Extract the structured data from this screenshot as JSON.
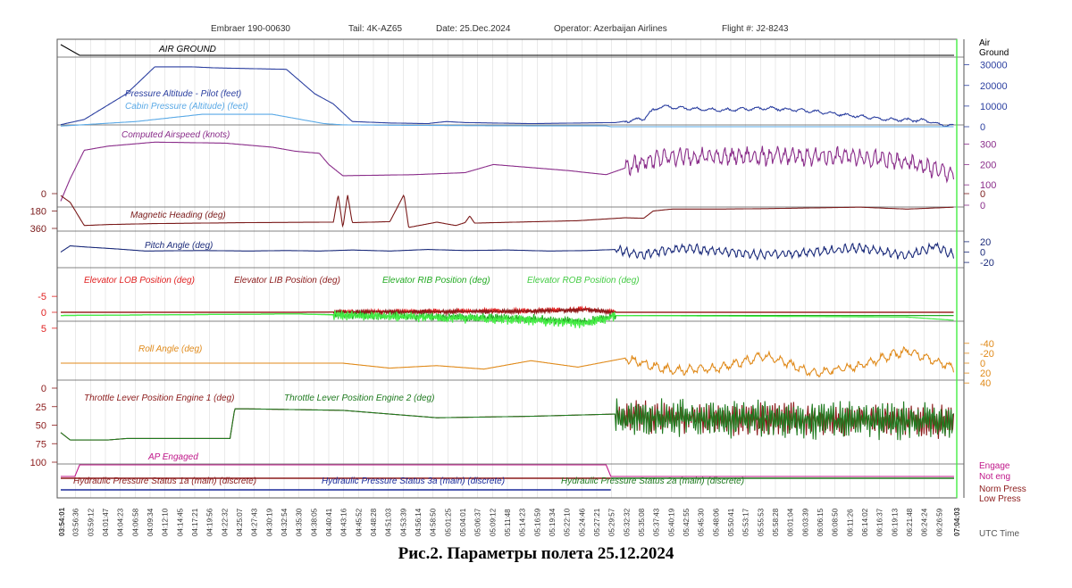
{
  "header": {
    "aircraft": "Embraer 190-00630",
    "tail": "Tail: 4K-AZ65",
    "date": "Date: 25.Dec.2024",
    "operator": "Operator: Azerbaijan Airlines",
    "flight": "Flight #: J2-8243"
  },
  "caption": "Рис.2. Параметры полета 25.12.2024",
  "x_axis": {
    "label": "UTC Time",
    "start_label": "03:54:01",
    "end_label": "07:04:03",
    "ticks": [
      "03:56:36",
      "03:59:12",
      "04:01:47",
      "04:04:23",
      "04:06:58",
      "04:09:34",
      "04:12:10",
      "04:14:45",
      "04:17:21",
      "04:19:56",
      "04:22:32",
      "04:25:07",
      "04:27:43",
      "04:30:19",
      "04:32:54",
      "04:35:30",
      "04:38:05",
      "04:40:41",
      "04:43:16",
      "04:45:52",
      "04:48:28",
      "04:51:03",
      "04:53:39",
      "04:56:14",
      "04:58:50",
      "05:01:25",
      "05:04:01",
      "05:06:37",
      "05:09:12",
      "05:11:48",
      "05:14:23",
      "05:16:59",
      "05:19:34",
      "05:22:10",
      "05:24:46",
      "05:27:21",
      "05:29:57",
      "05:32:32",
      "05:35:08",
      "05:37:43",
      "05:40:19",
      "05:42:55",
      "05:45:30",
      "05:48:06",
      "05:50:41",
      "05:53:17",
      "05:55:53",
      "05:58:28",
      "06:01:04",
      "06:03:39",
      "06:06:15",
      "06:08:50",
      "06:11:26",
      "06:14:02",
      "06:16:37",
      "06:19:13",
      "06:21:48",
      "06:24:24",
      "06:26:59"
    ]
  },
  "colors": {
    "air_ground": "#000000",
    "pressure_altitude": "#2b3fa0",
    "cabin_pressure": "#5aa9e6",
    "airspeed": "#8a2d8a",
    "heading": "#7a1a1a",
    "pitch": "#1a2a7a",
    "elev_lob": "#e02020",
    "elev_lib": "#8b1a1a",
    "elev_rib": "#22aa22",
    "elev_rob": "#44ee44",
    "roll": "#e08a1a",
    "throttle_1": "#8b1a1a",
    "throttle_2": "#1f7a1f",
    "ap_engaged": "#c0178a",
    "hyd_1a": "#8b1a1a",
    "hyd_3a": "#1a2a9a",
    "hyd_2a": "#1f7a1f",
    "separator": "#5a5a5a",
    "grid": "#dddddd",
    "end_marker": "#44ee44"
  },
  "chart_data": [
    {
      "type": "line",
      "panel": "air-ground",
      "series": [
        {
          "name": "AIR GROUND",
          "x": [
            0,
            4,
            190
          ],
          "values": [
            0,
            1,
            1
          ]
        }
      ],
      "axis_labels_right": [
        "Air",
        "Ground"
      ]
    },
    {
      "type": "line",
      "panel": "altitude",
      "ylim": [
        0,
        32000
      ],
      "yticks_right": [
        0,
        10000,
        20000,
        30000
      ],
      "series": [
        {
          "name": "Pressure Altitude - Pilot (feet)",
          "x": [
            0,
            5,
            14,
            20,
            28,
            33,
            48,
            54,
            58,
            62,
            70,
            78,
            82,
            86,
            100,
            118,
            124,
            126,
            128,
            132,
            140,
            150,
            160,
            176,
            184,
            186,
            188,
            190
          ],
          "values": [
            1000,
            3500,
            16000,
            29000,
            29000,
            28500,
            27800,
            16000,
            11000,
            2500,
            1800,
            1500,
            2500,
            2000,
            1500,
            2000,
            4000,
            8000,
            10000,
            9000,
            8000,
            9000,
            7500,
            3500,
            3000,
            1500,
            800,
            300
          ]
        },
        {
          "name": "Cabin Pressure (Altitude) (feet)",
          "x": [
            0,
            16,
            30,
            45,
            56,
            60,
            80,
            100,
            116,
            117,
            190
          ],
          "values": [
            300,
            2500,
            6000,
            6000,
            1500,
            900,
            600,
            400,
            400,
            0,
            0
          ]
        }
      ]
    },
    {
      "type": "line",
      "panel": "airspeed",
      "ylim": [
        0,
        320
      ],
      "yticks_right": [
        0,
        100,
        200,
        300
      ],
      "series": [
        {
          "name": "Computed Airspeed (knots)",
          "x": [
            0,
            2,
            5,
            10,
            20,
            35,
            45,
            50,
            55,
            57,
            60,
            75,
            86,
            92,
            108,
            116,
            124,
            130,
            170,
            182,
            190
          ],
          "values": [
            20,
            130,
            270,
            290,
            310,
            305,
            285,
            265,
            255,
            200,
            145,
            150,
            160,
            200,
            170,
            150,
            215,
            240,
            240,
            200,
            150
          ]
        }
      ]
    },
    {
      "type": "line",
      "panel": "heading",
      "ylim": [
        0,
        360
      ],
      "yticks_left": [
        0,
        180,
        360
      ],
      "yticks_right": [
        0
      ],
      "series": [
        {
          "name": "Magnetic Heading (deg)",
          "x": [
            0,
            2,
            5,
            10,
            20,
            40,
            58,
            59,
            60,
            61,
            62,
            70,
            73,
            74,
            80,
            84,
            86,
            87,
            88,
            110,
            120,
            124,
            126,
            130,
            140,
            150,
            170,
            180,
            190
          ],
          "values": [
            20,
            90,
            330,
            320,
            310,
            300,
            295,
            10,
            355,
            10,
            300,
            290,
            10,
            350,
            295,
            330,
            300,
            230,
            305,
            280,
            250,
            255,
            180,
            160,
            160,
            155,
            140,
            160,
            140
          ]
        }
      ]
    },
    {
      "type": "line",
      "panel": "pitch",
      "ylim": [
        -25,
        25
      ],
      "yticks_right": [
        -20,
        0,
        20
      ],
      "series": [
        {
          "name": "Pitch Angle (deg)",
          "x": [
            0,
            2,
            5,
            12,
            18,
            30,
            40,
            48,
            55,
            62,
            70,
            78,
            86,
            95,
            104,
            112,
            118,
            120,
            124,
            132,
            150,
            170,
            180,
            186,
            190
          ],
          "values": [
            0,
            12,
            10,
            6,
            2,
            3,
            2,
            3,
            2,
            4,
            2,
            5,
            3,
            4,
            2,
            3,
            5,
            0,
            -4,
            8,
            -6,
            8,
            -8,
            12,
            -5
          ]
        }
      ]
    },
    {
      "type": "line",
      "panel": "elevator",
      "ylim": [
        -7,
        7
      ],
      "yticks_left": [
        -5,
        0,
        5
      ],
      "series": [
        {
          "name": "Elevator LOB Position (deg)",
          "x": [
            0,
            50,
            100,
            112,
            118,
            119,
            190
          ],
          "values": [
            0,
            0,
            -0.5,
            -1,
            0,
            0,
            0
          ]
        },
        {
          "name": "Elevator LIB Position (deg)",
          "x": [
            0,
            50,
            100,
            112,
            118,
            119,
            190
          ],
          "values": [
            0,
            0,
            -0.3,
            -0.8,
            0,
            0,
            0
          ]
        },
        {
          "name": "Elevator RIB Position (deg)",
          "x": [
            0,
            50,
            100,
            112,
            118,
            119,
            190
          ],
          "values": [
            1,
            0.5,
            2,
            3,
            1,
            1,
            1
          ]
        },
        {
          "name": "Elevator ROB Position (deg)",
          "x": [
            0,
            50,
            100,
            112,
            118,
            119,
            180,
            190
          ],
          "values": [
            1,
            0.5,
            2.5,
            3.5,
            1,
            1,
            1.5,
            2.5
          ]
        }
      ]
    },
    {
      "type": "line",
      "panel": "roll",
      "ylim": [
        -45,
        45
      ],
      "yticks_right": [
        -40,
        -20,
        0,
        20,
        40
      ],
      "series": [
        {
          "name": "Roll Angle (deg)",
          "x": [
            0,
            20,
            40,
            60,
            70,
            80,
            90,
            100,
            110,
            120,
            130,
            140,
            150,
            160,
            170,
            180,
            190
          ],
          "values": [
            0,
            0,
            0,
            0,
            10,
            5,
            12,
            -5,
            8,
            -10,
            15,
            10,
            -15,
            20,
            5,
            -25,
            10
          ]
        }
      ]
    },
    {
      "type": "line",
      "panel": "throttle",
      "ylim": [
        0,
        100
      ],
      "yticks_left": [
        0,
        25,
        50,
        75,
        100
      ],
      "series": [
        {
          "name": "Throttle Lever Position Engine 1 (deg)",
          "x": [
            0,
            2,
            10,
            14,
            36,
            37,
            40,
            60,
            80,
            100,
            118,
            119,
            190
          ],
          "values": [
            60,
            70,
            70,
            68,
            68,
            28,
            28,
            30,
            40,
            38,
            35,
            40,
            45
          ]
        },
        {
          "name": "Throttle Lever Position Engine 2 (deg)",
          "x": [
            0,
            2,
            10,
            14,
            36,
            37,
            40,
            60,
            80,
            100,
            118,
            119,
            190
          ],
          "values": [
            60,
            70,
            70,
            68,
            68,
            28,
            28,
            30,
            40,
            38,
            35,
            40,
            45
          ]
        }
      ]
    },
    {
      "type": "line",
      "panel": "ap-engaged",
      "series": [
        {
          "name": "AP Engaged",
          "x": [
            0,
            3,
            4,
            116,
            117,
            190
          ],
          "values": [
            0,
            0,
            1,
            1,
            0,
            0
          ]
        }
      ],
      "axis_labels_right": [
        "Engage",
        "Not eng"
      ]
    },
    {
      "type": "line",
      "panel": "hydraulics",
      "series": [
        {
          "name": "Hydraulic Pressure Status 1a (main) (discrete)"
        },
        {
          "name": "Hydraulic Pressure Status 3a (main) (discrete)"
        },
        {
          "name": "Hydraulic Pressure Status 2a (main) (discrete)"
        }
      ],
      "axis_labels_right": [
        "Norm Press",
        "Low Press"
      ]
    }
  ]
}
